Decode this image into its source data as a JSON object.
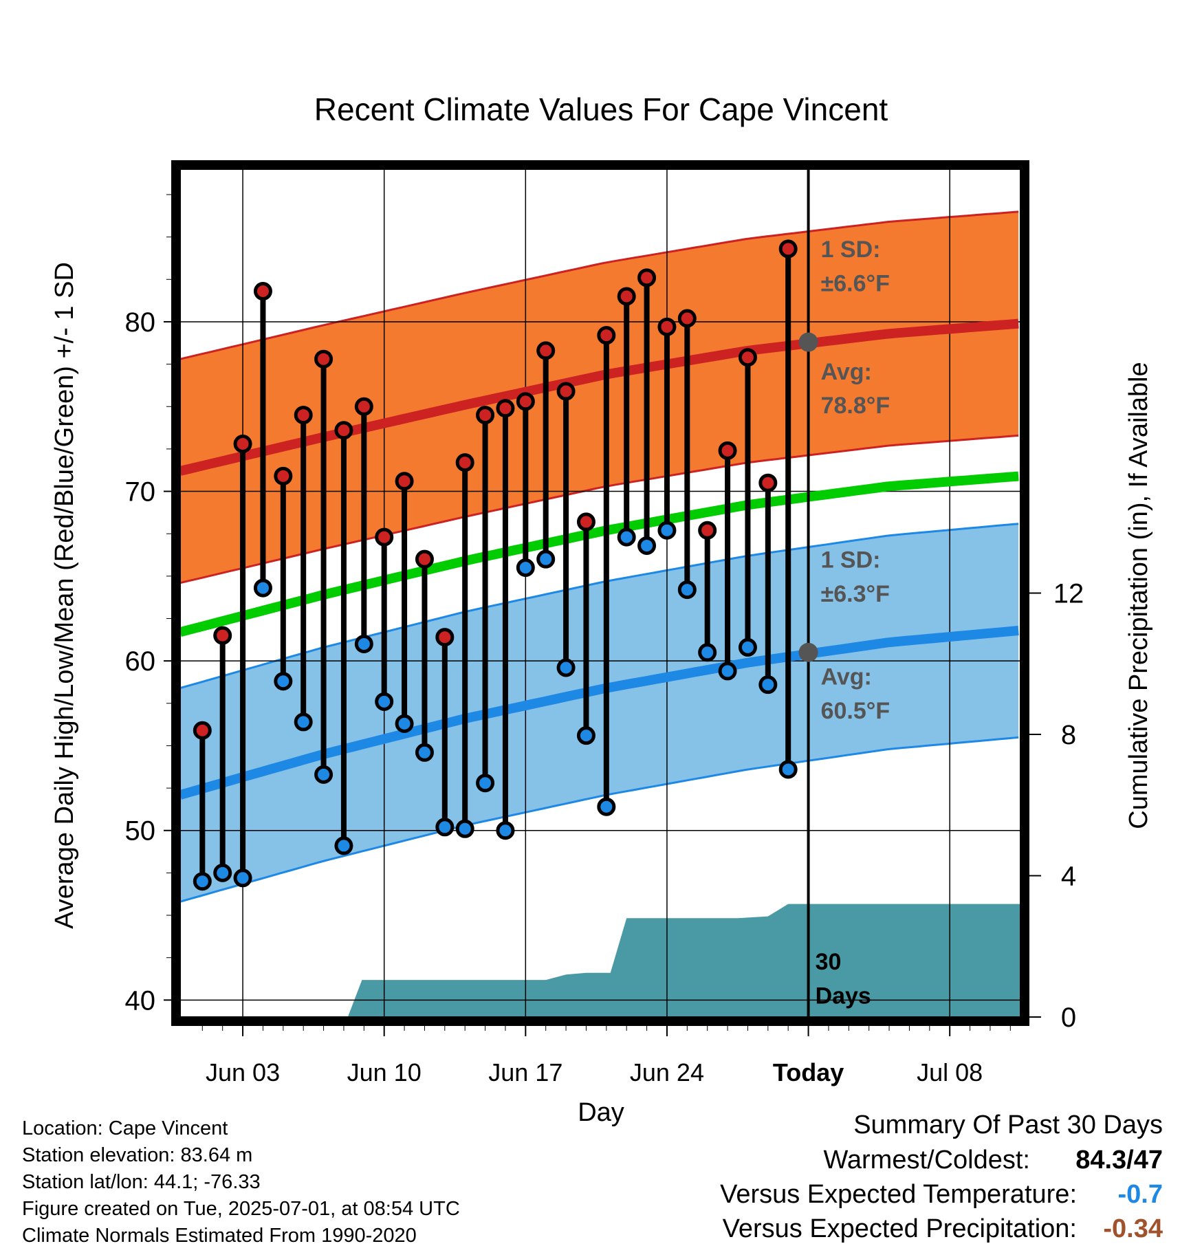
{
  "chart_data": {
    "type": "line",
    "title": "Recent Climate Values For Cape Vincent",
    "xlabel": "Day",
    "ylabel_left": "Average Daily High/Low/Mean (Red/Blue/Green) +/- 1 SD",
    "ylabel_right": "Cumulative Precipitation (in), If Available",
    "x_ticks": [
      "Jun 03",
      "Jun 10",
      "Jun 17",
      "Jun 24",
      "Today",
      "Jul 08"
    ],
    "x_tick_days": [
      3,
      10,
      17,
      24,
      31,
      38
    ],
    "xlim": [
      -0.1,
      41.5
    ],
    "ylim_left": [
      39,
      89
    ],
    "y_ticks_left": [
      40,
      50,
      60,
      70,
      80
    ],
    "ylim_right": [
      0,
      24
    ],
    "y_ticks_right": [
      0,
      4,
      8,
      12
    ],
    "grid": true,
    "today_day": 31,
    "days": [
      1,
      2,
      3,
      4,
      5,
      6,
      7,
      8,
      9,
      10,
      11,
      12,
      13,
      14,
      15,
      16,
      17,
      18,
      19,
      20,
      21,
      22,
      23,
      24,
      25,
      26,
      27,
      28,
      29,
      30
    ],
    "series": [
      {
        "name": "High",
        "color": "#cc2222",
        "values": [
          55.9,
          61.5,
          72.8,
          81.8,
          70.9,
          74.5,
          77.8,
          73.6,
          75.0,
          67.3,
          70.6,
          66.0,
          61.4,
          71.7,
          74.5,
          74.9,
          75.3,
          78.3,
          75.9,
          68.2,
          79.2,
          81.5,
          82.6,
          79.7,
          80.2,
          67.7,
          72.4,
          77.9,
          70.5,
          84.3
        ]
      },
      {
        "name": "Low",
        "color": "#1e88e5",
        "values": [
          47.0,
          47.5,
          47.2,
          64.3,
          58.8,
          56.4,
          53.3,
          49.1,
          61.0,
          57.6,
          56.3,
          54.6,
          50.2,
          50.1,
          52.8,
          50.0,
          65.5,
          66.0,
          59.6,
          55.6,
          51.4,
          67.3,
          66.8,
          67.7,
          64.2,
          60.5,
          59.4,
          60.8,
          58.6,
          53.6
        ]
      }
    ],
    "normals": {
      "days": [
        -0.1,
        7,
        14,
        21,
        28,
        35,
        41.5
      ],
      "high_avg": [
        71.2,
        73.2,
        75.1,
        76.9,
        78.3,
        79.3,
        79.9
      ],
      "high_sd": 6.6,
      "low_avg": [
        52.1,
        54.5,
        56.6,
        58.4,
        59.9,
        61.1,
        61.8
      ],
      "low_sd": 6.3,
      "mean_avg": [
        61.7,
        63.9,
        65.9,
        67.7,
        69.2,
        70.3,
        70.9
      ]
    },
    "precip_cumulative": {
      "days": [
        -0.1,
        8.2,
        8.9,
        17.2,
        18.0,
        19.0,
        20.0,
        21.2,
        22.0,
        23.5,
        27.5,
        29.0,
        30.0,
        41.5
      ],
      "values": [
        0,
        0,
        1.05,
        1.05,
        1.05,
        1.2,
        1.25,
        1.25,
        2.8,
        2.8,
        2.8,
        2.85,
        3.2,
        3.2
      ]
    },
    "annotations": {
      "high_sd_label_1": "1 SD:",
      "high_sd_label_2": "±6.6°F",
      "high_avg_label_1": "Avg:",
      "high_avg_label_2": "78.8°F",
      "high_avg_today": 78.8,
      "low_sd_label_1": "1 SD:",
      "low_sd_label_2": "±6.3°F",
      "low_avg_label_1": "Avg:",
      "low_avg_label_2": "60.5°F",
      "low_avg_today": 60.5,
      "days_label_1": "30",
      "days_label_2": "Days"
    },
    "colors": {
      "high_band": "#f47a30",
      "high_line": "#cc2222",
      "low_band": "#86c1e8",
      "low_line": "#1e88e5",
      "mean_line": "#00cc00",
      "precip": "#4a9aa5",
      "annotation": "#555555"
    }
  },
  "info": {
    "location": "Location: Cape Vincent",
    "elevation": "Station elevation: 83.64 m",
    "latlon": "Station lat/lon: 44.1; -76.33",
    "created": "Figure created on Tue, 2025-07-01, at 08:54 UTC",
    "normals": "Climate Normals Estimated From 1990-2020"
  },
  "summary": {
    "title": "Summary Of Past 30 Days",
    "warmest_label": "Warmest/Coldest:",
    "warmest_value": "84.3/47",
    "temp_label": "Versus Expected Temperature:",
    "temp_value": "-0.7",
    "temp_color": "#1e88e5",
    "precip_label": "Versus Expected Precipitation:",
    "precip_value": "-0.34",
    "precip_color": "#a0522d"
  }
}
